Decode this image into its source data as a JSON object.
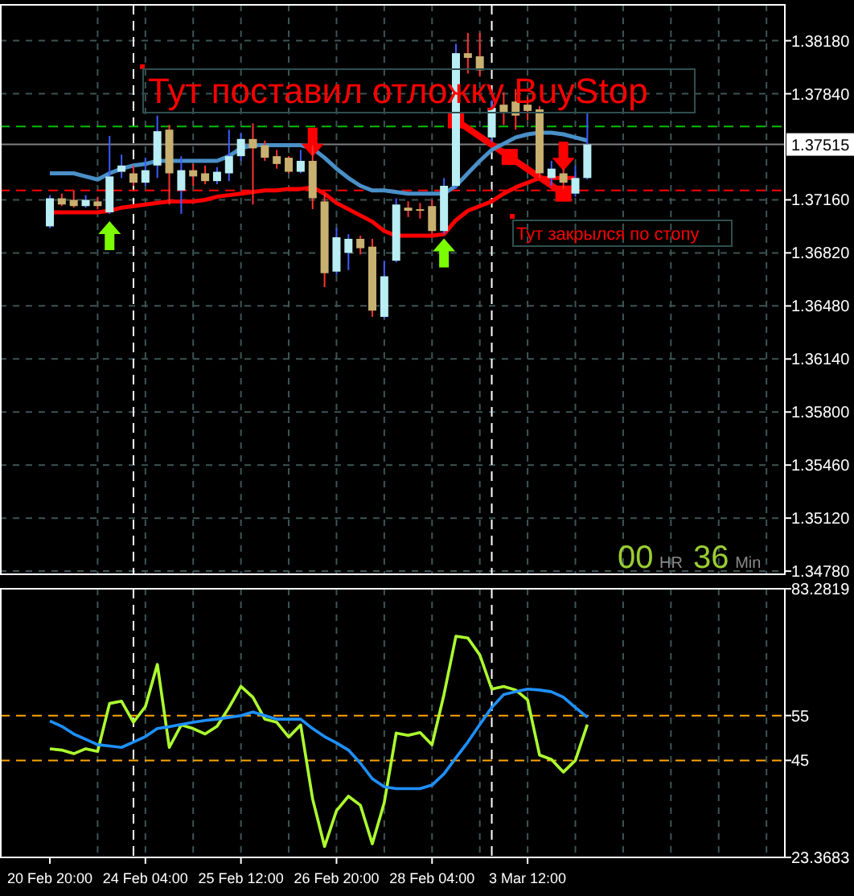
{
  "chart_data": [
    {
      "type": "candlestick",
      "categories": [
        null,
        null,
        null,
        null,
        null,
        null,
        null,
        null,
        null,
        null,
        null,
        null,
        null,
        null,
        null,
        null,
        null,
        null,
        null,
        null,
        null,
        null,
        null,
        null,
        null,
        null,
        null,
        null,
        null,
        null,
        null,
        null,
        null,
        null,
        null,
        null,
        null,
        null,
        null,
        null,
        null,
        null,
        null,
        null,
        null,
        null,
        null,
        null,
        null,
        null,
        null,
        null,
        null,
        null,
        null,
        null,
        null,
        null,
        null,
        null,
        null,
        null
      ],
      "ohlc": [
        [
          1.3699,
          1.3719,
          1.3698,
          1.3717
        ],
        [
          1.3717,
          1.372,
          1.3712,
          1.3713
        ],
        [
          1.3716,
          1.3722,
          1.3711,
          1.3712
        ],
        [
          1.3712,
          1.3719,
          1.3711,
          1.3716
        ],
        [
          1.3715,
          1.3718,
          1.371,
          1.3712
        ],
        [
          1.3708,
          1.3757,
          1.3707,
          1.3731
        ],
        [
          1.3734,
          1.3745,
          1.373,
          1.3738
        ],
        [
          1.3733,
          1.3738,
          1.3725,
          1.3727
        ],
        [
          1.3727,
          1.3743,
          1.3725,
          1.3735
        ],
        [
          1.3738,
          1.377,
          1.373,
          1.376
        ],
        [
          1.3761,
          1.3764,
          1.3713,
          1.3733
        ],
        [
          1.3722,
          1.3744,
          1.3707,
          1.3735
        ],
        [
          1.3735,
          1.3739,
          1.3725,
          1.3731
        ],
        [
          1.3733,
          1.3738,
          1.3726,
          1.3728
        ],
        [
          1.3728,
          1.3737,
          1.3726,
          1.3734
        ],
        [
          1.3733,
          1.3761,
          1.3728,
          1.3744
        ],
        [
          1.3744,
          1.3759,
          1.3741,
          1.3755
        ],
        [
          1.3755,
          1.3765,
          1.3713,
          1.3749
        ],
        [
          1.3751,
          1.3754,
          1.3741,
          1.3743
        ],
        [
          1.3744,
          1.3748,
          1.3736,
          1.3739
        ],
        [
          1.3743,
          1.3744,
          1.3733,
          1.3734
        ],
        [
          1.3734,
          1.3748,
          1.3733,
          1.3741
        ],
        [
          1.3741,
          1.3751,
          1.371,
          1.3717
        ],
        [
          1.3715,
          1.372,
          1.366,
          1.3669
        ],
        [
          1.367,
          1.3698,
          1.3668,
          1.3692
        ],
        [
          1.3682,
          1.3694,
          1.3671,
          1.3691
        ],
        [
          1.3691,
          1.3693,
          1.3681,
          1.3685
        ],
        [
          1.3686,
          1.3691,
          1.3641,
          1.3645
        ],
        [
          1.3641,
          1.3677,
          1.364,
          1.3667
        ],
        [
          1.3677,
          1.3717,
          1.3676,
          1.3713
        ],
        [
          1.3711,
          1.3715,
          1.3705,
          1.3709
        ],
        [
          1.371,
          1.3714,
          1.3704,
          1.3709
        ],
        [
          1.3712,
          1.3716,
          1.3694,
          1.3696
        ],
        [
          1.3696,
          1.373,
          1.3694,
          1.3725
        ],
        [
          1.3725,
          1.3816,
          1.3723,
          1.381
        ],
        [
          1.381,
          1.3823,
          1.3797,
          1.3807
        ],
        [
          1.3808,
          1.3823,
          1.3795,
          1.3799
        ],
        [
          1.3756,
          1.378,
          1.3753,
          1.3775
        ],
        [
          1.3777,
          1.3785,
          1.3764,
          1.3772
        ],
        [
          1.3779,
          1.3787,
          1.3761,
          1.377
        ],
        [
          1.3777,
          1.3782,
          1.3767,
          1.3773
        ],
        [
          1.3774,
          1.3776,
          1.373,
          1.3733
        ],
        [
          1.373,
          1.3741,
          1.3725,
          1.3736
        ],
        [
          1.3733,
          1.3736,
          1.3723,
          1.3727
        ],
        [
          1.372,
          1.3738,
          1.3718,
          1.373
        ],
        [
          1.373,
          1.3772,
          1.3729,
          1.37515
        ],
        null,
        null,
        null,
        null,
        null,
        null,
        null,
        null,
        null,
        null,
        null,
        null,
        null,
        null,
        null,
        null
      ],
      "series": [
        {
          "type": "line",
          "color": "#4a90c8",
          "values": [
            1.3733,
            1.3733,
            1.3733,
            1.3731,
            1.3729,
            1.3733,
            1.3736,
            1.3738,
            1.3739,
            1.3741,
            1.3741,
            1.3741,
            1.3741,
            1.3741,
            1.3741,
            1.3744,
            1.3749,
            1.3751,
            1.3751,
            1.3751,
            1.3751,
            1.3751,
            1.3749,
            1.3743,
            1.3736,
            1.373,
            1.3725,
            1.3722,
            1.3722,
            1.3721,
            1.372,
            1.372,
            1.372,
            1.372,
            1.3725,
            1.3733,
            1.3741,
            1.3748,
            1.3752,
            1.3756,
            1.3758,
            1.3759,
            1.3759,
            1.3758,
            1.3756,
            1.3754,
            null,
            null,
            null,
            null,
            null,
            null,
            null,
            null,
            null,
            null,
            null,
            null,
            null,
            null,
            null,
            null
          ]
        },
        {
          "type": "line",
          "color": "#ff0000",
          "values": [
            1.3708,
            1.3708,
            1.3708,
            1.3708,
            1.3708,
            1.3709,
            1.3711,
            1.3712,
            1.3713,
            1.3714,
            1.3715,
            1.3715,
            1.3715,
            1.3716,
            1.3718,
            1.3719,
            1.372,
            1.3721,
            1.3722,
            1.3722,
            1.3723,
            1.3723,
            1.3724,
            1.372,
            1.3714,
            1.371,
            1.3706,
            1.3702,
            1.3696,
            1.3693,
            1.3693,
            1.3693,
            1.3693,
            1.3694,
            1.3703,
            1.3709,
            1.3712,
            1.3715,
            1.372,
            1.3724,
            1.3727,
            1.373,
            1.373,
            1.373,
            1.373,
            null,
            null,
            null,
            null,
            null,
            null,
            null,
            null,
            null,
            null,
            null,
            null,
            null,
            null,
            null,
            null,
            null
          ]
        },
        {
          "type": "scatter",
          "color": "#7cfc00",
          "values": [
            null,
            null,
            null,
            null,
            null,
            1.3693,
            null,
            null,
            null,
            null,
            null,
            null,
            null,
            null,
            null,
            null,
            null,
            null,
            null,
            null,
            null,
            null,
            null,
            null,
            null,
            null,
            null,
            null,
            null,
            null,
            null,
            null,
            null,
            1.3682,
            null,
            null,
            null,
            null,
            null,
            null,
            null,
            null,
            null,
            null,
            null,
            null,
            null,
            null,
            null,
            null,
            null,
            null,
            null,
            null,
            null,
            null,
            null,
            null,
            null,
            null,
            null,
            null
          ]
        },
        {
          "type": "scatter",
          "color": "#ff0000",
          "values": [
            null,
            null,
            null,
            null,
            null,
            null,
            null,
            null,
            null,
            null,
            null,
            null,
            null,
            null,
            null,
            null,
            null,
            null,
            null,
            null,
            null,
            null,
            1.3753,
            null,
            null,
            null,
            null,
            null,
            null,
            null,
            null,
            null,
            null,
            null,
            null,
            null,
            null,
            null,
            null,
            null,
            null,
            null,
            null,
            1.3744,
            null,
            null,
            null,
            null,
            null,
            null,
            null,
            null,
            null,
            null,
            null,
            null,
            null,
            null,
            null,
            null,
            null,
            null
          ]
        }
      ],
      "ylim": [
        1.3476,
        1.3841
      ],
      "yticks": [
        {
          "value": 1.3818,
          "label": "1.38180"
        },
        {
          "value": 1.3784,
          "label": "1.37840"
        },
        {
          "value": 1.3716,
          "label": "1.37160"
        },
        {
          "value": 1.3682,
          "label": "1.36820"
        },
        {
          "value": 1.3648,
          "label": "1.36480"
        },
        {
          "value": 1.3614,
          "label": "1.36140"
        },
        {
          "value": 1.358,
          "label": "1.35800"
        },
        {
          "value": 1.3546,
          "label": "1.35460"
        },
        {
          "value": 1.3512,
          "label": "1.35120"
        },
        {
          "value": 1.3478,
          "label": "1.34780"
        }
      ],
      "grid": true,
      "tick_labels": "y",
      "ref_lines": [
        {
          "axis": "y",
          "value": 1.3763,
          "color": "#00c000",
          "line_style": "dashed"
        },
        {
          "axis": "y",
          "value": 1.3722,
          "color": "#ff0000",
          "line_style": "dashed"
        },
        {
          "axis": "y",
          "value": 1.37515,
          "label": "1.37515",
          "color": "#808080",
          "line_style": "solid"
        }
      ],
      "annotations": [
        {
          "text": "Тут поставил отложку BuyStop",
          "y": 1.3767
        },
        {
          "text": "Тут закрылся по стопу",
          "y": 1.372
        },
        "00 HR 36 Min"
      ]
    },
    {
      "type": "line",
      "categories": [
        "20 Feb 20:00",
        null,
        null,
        null,
        null,
        null,
        null,
        null,
        "24 Feb 04:00",
        null,
        null,
        null,
        null,
        null,
        null,
        null,
        "25 Feb 12:00",
        null,
        null,
        null,
        null,
        null,
        null,
        null,
        "26 Feb 20:00",
        null,
        null,
        null,
        null,
        null,
        null,
        null,
        "28 Feb 04:00",
        null,
        null,
        null,
        null,
        null,
        null,
        null,
        "3 Mar 12:00",
        null,
        null,
        null,
        null,
        null,
        null,
        null,
        null,
        null,
        null,
        null,
        null,
        null,
        null,
        null,
        null,
        null,
        null,
        null,
        null,
        null
      ],
      "series": [
        {
          "color": "#adff2f",
          "values": [
            47.6,
            47.3,
            46.5,
            47.6,
            47.0,
            57.7,
            58.2,
            53.5,
            57.0,
            66.4,
            47.9,
            52.9,
            52.1,
            50.9,
            52.6,
            56.8,
            61.5,
            59.1,
            54.2,
            53.5,
            50.2,
            52.9,
            36.4,
            25.8,
            33.8,
            37.0,
            35.0,
            26.4,
            35.6,
            51.1,
            50.6,
            51.2,
            48.5,
            59.7,
            72.7,
            72.3,
            68.5,
            60.9,
            61.5,
            60.7,
            58.5,
            46.2,
            45.2,
            42.4,
            45.0,
            53.0,
            null,
            null,
            null,
            null,
            null,
            null,
            null,
            null,
            null,
            null,
            null,
            null,
            null,
            null,
            null,
            null
          ]
        },
        {
          "color": "#1e90ff",
          "values": [
            53.8,
            52.6,
            50.9,
            49.7,
            48.5,
            48.2,
            47.9,
            49.1,
            50.3,
            52.1,
            52.5,
            53.0,
            53.5,
            53.9,
            54.2,
            54.6,
            55.0,
            55.8,
            55.0,
            54.2,
            54.2,
            54.2,
            52.1,
            50.3,
            48.9,
            47.3,
            44.4,
            40.9,
            39.1,
            38.7,
            38.7,
            38.7,
            39.5,
            42.0,
            45.6,
            49.1,
            53.0,
            56.8,
            59.7,
            60.3,
            60.9,
            60.7,
            60.3,
            59.1,
            56.8,
            54.6,
            null,
            null,
            null,
            null,
            null,
            null,
            null,
            null,
            null,
            null,
            null,
            null,
            null,
            null,
            null,
            null
          ]
        }
      ],
      "ylim": [
        23.3683,
        83.2819
      ],
      "yticks": [
        83.2819,
        55,
        45,
        23.3683
      ],
      "grid": "x",
      "ref_lines": [
        {
          "axis": "y",
          "value": 55,
          "color": "#ffa500",
          "line_style": "dashed"
        },
        {
          "axis": "y",
          "value": 45,
          "color": "#ffa500",
          "line_style": "dashed"
        }
      ]
    }
  ]
}
